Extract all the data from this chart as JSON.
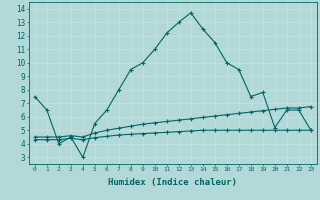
{
  "xlabel": "Humidex (Indice chaleur)",
  "background_color": "#b2d8d8",
  "grid_color": "#d4eaea",
  "line_color": "#006666",
  "xlim": [
    -0.5,
    23.5
  ],
  "ylim": [
    2.5,
    14.5
  ],
  "xticks": [
    0,
    1,
    2,
    3,
    4,
    5,
    6,
    7,
    8,
    9,
    10,
    11,
    12,
    13,
    14,
    15,
    16,
    17,
    18,
    19,
    20,
    21,
    22,
    23
  ],
  "yticks": [
    3,
    4,
    5,
    6,
    7,
    8,
    9,
    10,
    11,
    12,
    13,
    14
  ],
  "curve1_x": [
    0,
    1,
    2,
    3,
    4,
    5,
    6,
    7,
    8,
    9,
    10,
    11,
    12,
    13,
    14,
    15,
    16,
    17,
    18,
    19,
    20,
    21,
    22,
    23
  ],
  "curve1_y": [
    7.5,
    6.5,
    4.0,
    4.5,
    3.0,
    5.5,
    6.5,
    8.0,
    9.5,
    10.0,
    11.0,
    12.2,
    13.0,
    13.7,
    12.5,
    11.5,
    10.0,
    9.5,
    7.5,
    7.8,
    5.2,
    6.5,
    6.5,
    5.0
  ],
  "curve2_x": [
    0,
    1,
    2,
    3,
    4,
    5,
    6,
    7,
    8,
    9,
    10,
    11,
    12,
    13,
    14,
    15,
    16,
    17,
    18,
    19,
    20,
    21,
    22,
    23
  ],
  "curve2_y": [
    4.5,
    4.5,
    4.5,
    4.6,
    4.5,
    4.8,
    5.0,
    5.15,
    5.3,
    5.45,
    5.55,
    5.65,
    5.75,
    5.85,
    5.95,
    6.05,
    6.15,
    6.25,
    6.35,
    6.45,
    6.55,
    6.65,
    6.65,
    6.75
  ],
  "curve3_x": [
    0,
    1,
    2,
    3,
    4,
    5,
    6,
    7,
    8,
    9,
    10,
    11,
    12,
    13,
    14,
    15,
    16,
    17,
    18,
    19,
    20,
    21,
    22,
    23
  ],
  "curve3_y": [
    4.3,
    4.3,
    4.3,
    4.4,
    4.3,
    4.45,
    4.55,
    4.65,
    4.7,
    4.75,
    4.8,
    4.85,
    4.9,
    4.95,
    5.0,
    5.0,
    5.0,
    5.0,
    5.0,
    5.0,
    5.0,
    5.0,
    5.0,
    5.0
  ],
  "tick_fontsize_x": 4.5,
  "tick_fontsize_y": 5.5,
  "xlabel_fontsize": 6.5
}
